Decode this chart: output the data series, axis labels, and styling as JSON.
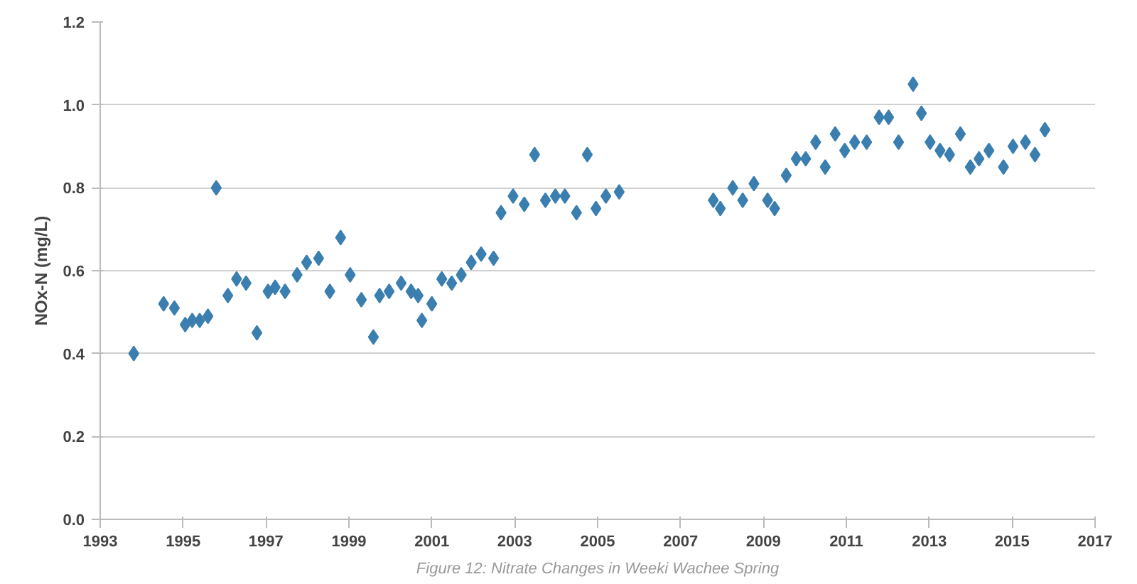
{
  "chart_data": {
    "type": "scatter",
    "ylabel": "NOx-N (mg/L)",
    "annotations": [
      "Figure 12: Nitrate Changes in Weeki Wachee Spring"
    ],
    "x": [
      1993.81,
      1994.53,
      1994.79,
      1995.05,
      1995.22,
      1995.4,
      1995.6,
      1995.8,
      1996.08,
      1996.29,
      1996.52,
      1996.78,
      1997.05,
      1997.22,
      1997.46,
      1997.75,
      1997.98,
      1998.27,
      1998.54,
      1998.8,
      1999.03,
      1999.3,
      1999.59,
      1999.74,
      1999.97,
      2000.26,
      2000.5,
      2000.67,
      2000.76,
      2001.0,
      2001.24,
      2001.48,
      2001.71,
      2001.95,
      2002.19,
      2002.49,
      2002.67,
      2002.96,
      2003.23,
      2003.48,
      2003.74,
      2003.98,
      2004.21,
      2004.49,
      2004.75,
      2004.96,
      2005.2,
      2005.52,
      2007.79,
      2007.96,
      2008.26,
      2008.5,
      2008.77,
      2009.1,
      2009.27,
      2009.55,
      2009.79,
      2010.02,
      2010.26,
      2010.49,
      2010.73,
      2010.96,
      2011.2,
      2011.49,
      2011.79,
      2012.02,
      2012.26,
      2012.61,
      2012.81,
      2013.02,
      2013.26,
      2013.49,
      2013.75,
      2013.99,
      2014.2,
      2014.44,
      2014.79,
      2015.02,
      2015.32,
      2015.55,
      2015.79
    ],
    "values": [
      0.4,
      0.52,
      0.51,
      0.47,
      0.48,
      0.48,
      0.49,
      0.8,
      0.54,
      0.58,
      0.57,
      0.45,
      0.55,
      0.56,
      0.55,
      0.59,
      0.62,
      0.63,
      0.55,
      0.68,
      0.59,
      0.53,
      0.44,
      0.54,
      0.55,
      0.57,
      0.55,
      0.54,
      0.48,
      0.52,
      0.58,
      0.57,
      0.59,
      0.62,
      0.64,
      0.63,
      0.74,
      0.78,
      0.76,
      0.88,
      0.77,
      0.78,
      0.78,
      0.74,
      0.88,
      0.75,
      0.78,
      0.79,
      0.77,
      0.75,
      0.8,
      0.77,
      0.81,
      0.77,
      0.75,
      0.83,
      0.87,
      0.87,
      0.91,
      0.85,
      0.93,
      0.89,
      0.91,
      0.91,
      0.97,
      0.97,
      0.91,
      1.05,
      0.98,
      0.91,
      0.89,
      0.88,
      0.93,
      0.85,
      0.87,
      0.89,
      0.85,
      0.9,
      0.91,
      0.88,
      0.94
    ],
    "color": "#3b7fb0",
    "marker": "diamond",
    "xlim": [
      1993,
      2017
    ],
    "xticks": [
      1993,
      1995,
      1997,
      1999,
      2001,
      2003,
      2005,
      2007,
      2009,
      2011,
      2013,
      2015,
      2017
    ],
    "ylim": [
      0,
      1.2
    ],
    "yticks": [
      {
        "value": 0,
        "label": "0.0"
      },
      0.2,
      0.4,
      0.6,
      0.8,
      {
        "value": 1,
        "label": "1.0"
      },
      1.2
    ],
    "grid": "y"
  }
}
